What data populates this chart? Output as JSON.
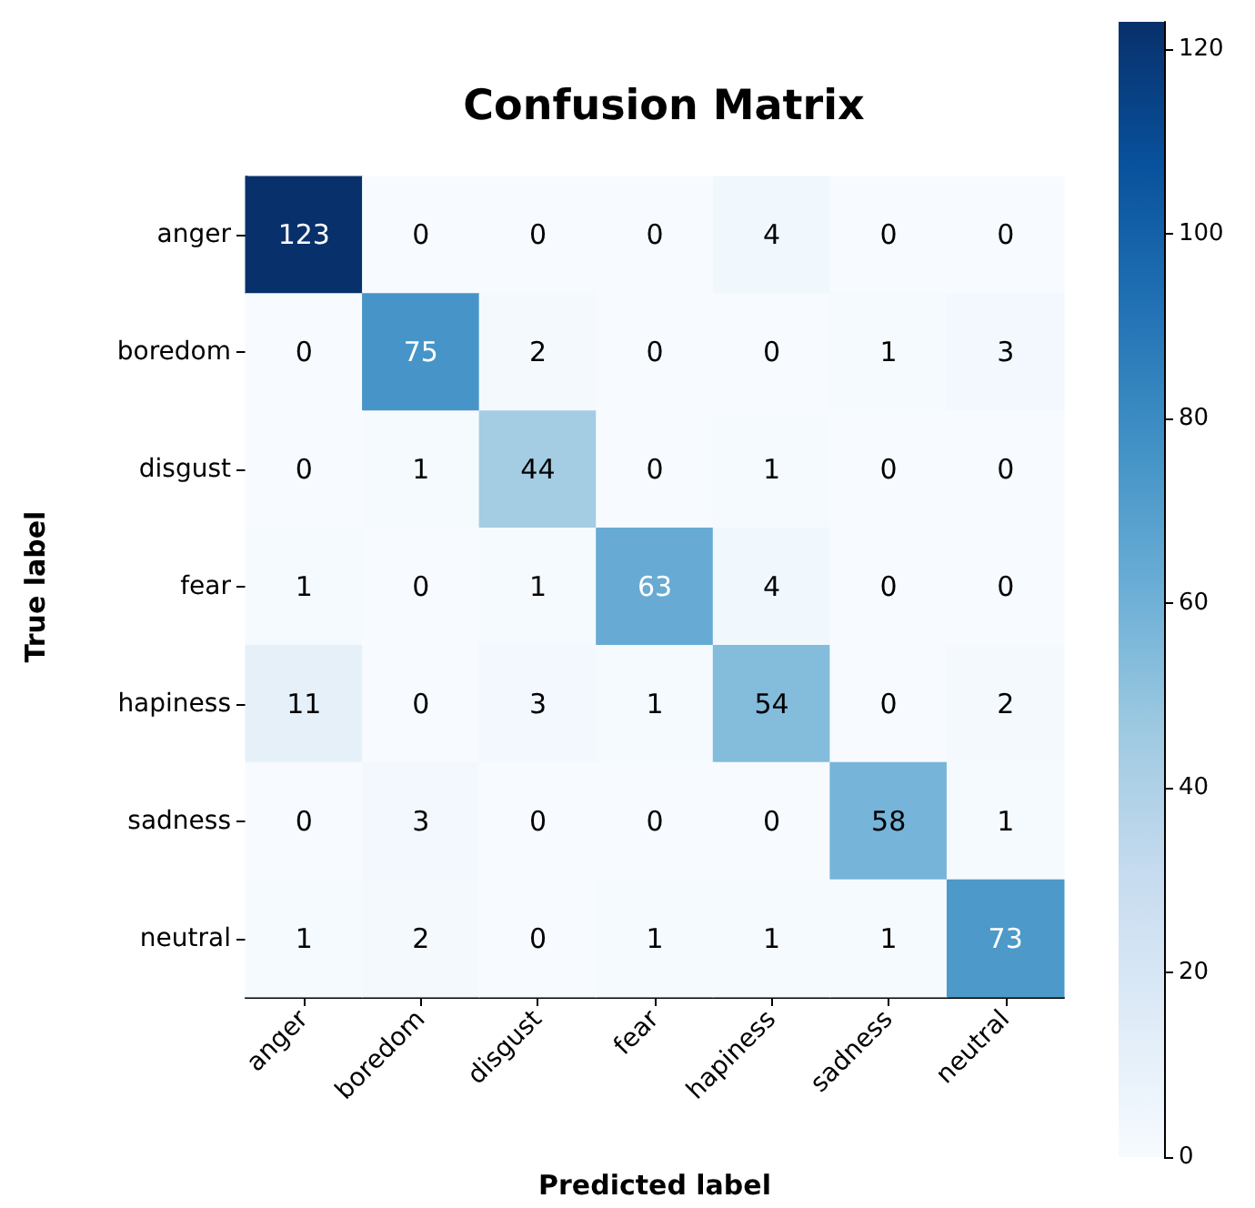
{
  "chart_data": {
    "type": "heatmap",
    "title": "Confusion Matrix",
    "xlabel": "Predicted label",
    "ylabel": "True label",
    "categories": [
      "anger",
      "boredom",
      "disgust",
      "fear",
      "hapiness",
      "sadness",
      "neutral"
    ],
    "y_categories": [
      "anger",
      "boredom",
      "disgust",
      "fear",
      "hapiness",
      "sadness",
      "neutral"
    ],
    "cells": [
      [
        123,
        0,
        0,
        0,
        4,
        0,
        0
      ],
      [
        0,
        75,
        2,
        0,
        0,
        1,
        3
      ],
      [
        0,
        1,
        44,
        0,
        1,
        0,
        0
      ],
      [
        1,
        0,
        1,
        63,
        4,
        0,
        0
      ],
      [
        11,
        0,
        3,
        1,
        54,
        0,
        2
      ],
      [
        0,
        3,
        0,
        0,
        0,
        58,
        1
      ],
      [
        1,
        2,
        0,
        1,
        1,
        1,
        73
      ]
    ],
    "data_labels": true,
    "clim": [
      0,
      123
    ],
    "cticks": [
      0,
      20,
      40,
      60,
      80,
      100,
      120
    ]
  }
}
